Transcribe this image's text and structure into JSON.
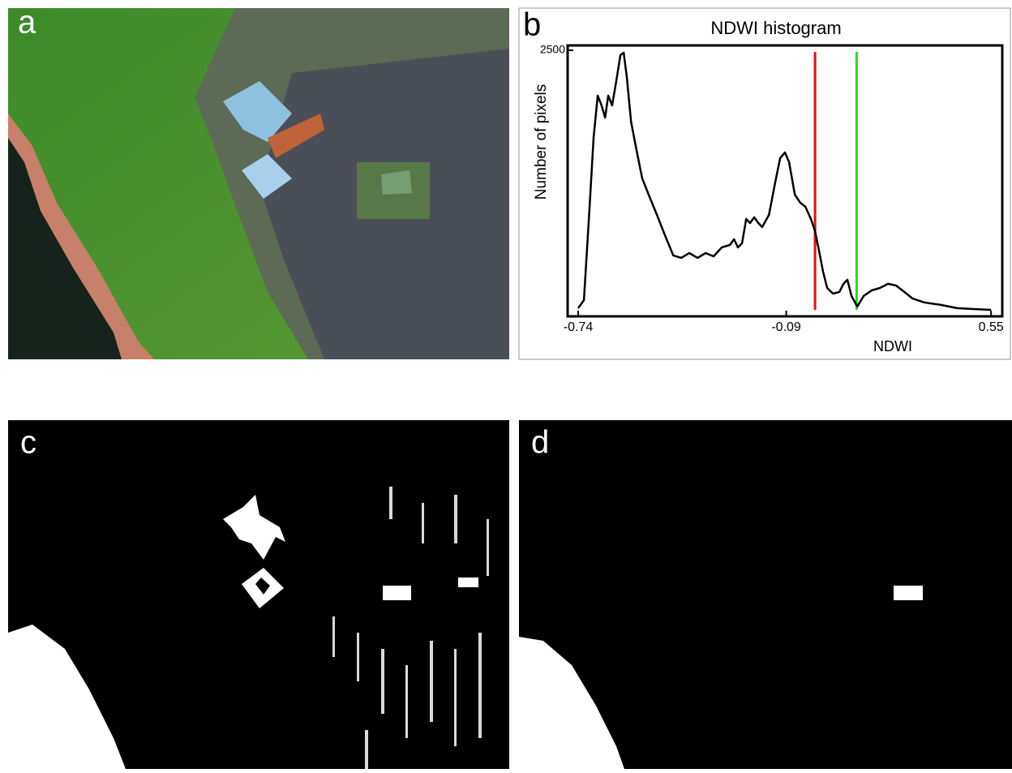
{
  "panels": {
    "a": "a",
    "c": "c",
    "d": "d"
  },
  "chart_data": {
    "type": "line",
    "label": "b",
    "title": "NDWI histogram",
    "x_label": "NDWI",
    "y_label": "Number of pixels",
    "x": [
      -0.74,
      -0.722,
      -0.705,
      -0.692,
      -0.679,
      -0.667,
      -0.656,
      -0.646,
      -0.634,
      -0.621,
      -0.608,
      -0.598,
      -0.588,
      -0.575,
      -0.558,
      -0.54,
      -0.52,
      -0.494,
      -0.469,
      -0.443,
      -0.418,
      -0.393,
      -0.367,
      -0.342,
      -0.317,
      -0.291,
      -0.266,
      -0.253,
      -0.241,
      -0.228,
      -0.215,
      -0.203,
      -0.19,
      -0.177,
      -0.165,
      -0.144,
      -0.127,
      -0.109,
      -0.094,
      -0.081,
      -0.063,
      -0.046,
      -0.03,
      -0.013,
      0.0,
      0.013,
      0.025,
      0.038,
      0.056,
      0.076,
      0.089,
      0.101,
      0.114,
      0.132,
      0.152,
      0.177,
      0.203,
      0.228,
      0.253,
      0.279,
      0.304,
      0.342,
      0.393,
      0.444,
      0.494,
      0.55
    ],
    "values": [
      39,
      116,
      968,
      1664,
      2067,
      1974,
      1858,
      2067,
      1974,
      2206,
      2454,
      2477,
      2245,
      1819,
      1548,
      1277,
      1122,
      929,
      735,
      542,
      519,
      565,
      519,
      565,
      534,
      619,
      642,
      697,
      619,
      658,
      890,
      851,
      906,
      851,
      813,
      929,
      1200,
      1471,
      1525,
      1432,
      1122,
      1045,
      1006,
      890,
      774,
      580,
      387,
      232,
      178,
      194,
      271,
      310,
      155,
      54,
      155,
      209,
      232,
      271,
      255,
      194,
      132,
      93,
      70,
      39,
      31,
      23
    ],
    "color": "#000000",
    "xlim": [
      -0.773,
      0.585
    ],
    "ylim": [
      -39,
      2546
    ],
    "xticks": [
      -0.74,
      -0.09,
      0.55
    ],
    "yticks": [
      2500
    ],
    "vlines": [
      {
        "value": 0.0,
        "color": "#e01010"
      },
      {
        "value": 0.13,
        "color": "#20e020"
      }
    ]
  }
}
